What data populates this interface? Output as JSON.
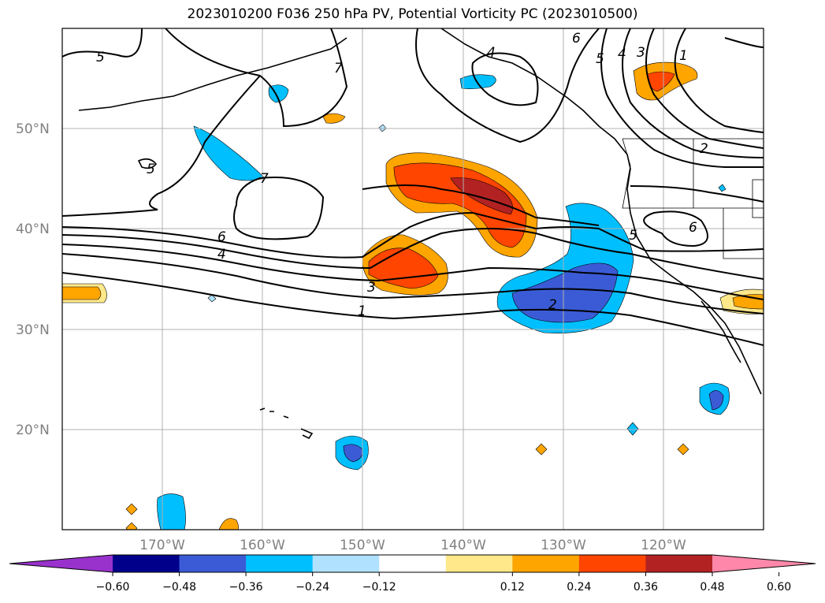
{
  "title": "2023010200 F036 250 hPa PV, Potential Vorticity PC (2023010500)",
  "lat_labels": [
    "50°N",
    "40°N",
    "30°N",
    "20°N"
  ],
  "lon_labels": [
    "170°W",
    "160°W",
    "150°W",
    "140°W",
    "130°W",
    "120°W"
  ],
  "contour_labels": [
    "5",
    "7",
    "6",
    "4",
    "5",
    "4",
    "3",
    "1",
    "5",
    "7",
    "6",
    "4",
    "3",
    "1",
    "2",
    "5",
    "6",
    "2"
  ],
  "colorbar": {
    "tick_labels": [
      "−0.60",
      "−0.48",
      "−0.36",
      "−0.24",
      "−0.12",
      "0.12",
      "0.24",
      "0.36",
      "0.48",
      "0.60"
    ],
    "colors": [
      "#9932cc",
      "#00008b",
      "#3b5bd6",
      "#00bfff",
      "#b0e2ff",
      "#ffffff",
      "#ffe88a",
      "#ffa500",
      "#ff4500",
      "#b22222",
      "#ff88aa"
    ]
  },
  "fill_colors": {
    "neg_light": "#b0e2ff",
    "neg_mid": "#00bfff",
    "neg_dark": "#3b5bd6",
    "pos_light": "#ffe88a",
    "pos_mid": "#ffa500",
    "pos_dark": "#ff4500",
    "pos_darker": "#b22222"
  }
}
